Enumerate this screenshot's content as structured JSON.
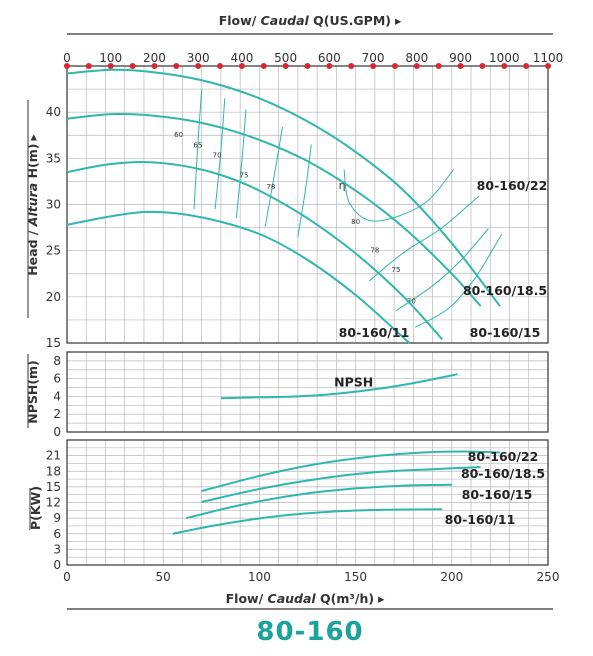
{
  "page_title": "80-160",
  "colors": {
    "curve": "#2fb7ad",
    "grid": "#b9b9b9",
    "frame": "#333333",
    "marker": "#e0232e",
    "title": "#1aa39a",
    "rule": "#555555"
  },
  "chart_data": [
    {
      "type": "line",
      "id": "head",
      "top_axis": {
        "title_plain": "Flow/ ",
        "title_italic": "Caudal",
        "title_rest": " Q(US.GPM)",
        "arrow": "▸",
        "range": [
          0,
          1100
        ],
        "ticks": [
          "0",
          "100",
          "200",
          "300",
          "400",
          "500",
          "600",
          "700",
          "800",
          "900",
          "1000",
          "1100"
        ]
      },
      "y_axis": {
        "title_plain": "Head / ",
        "title_italic": "Altura",
        "title_rest": " H(m)",
        "arrow": "▸",
        "range": [
          15,
          45
        ],
        "ticks": [
          "15",
          "20",
          "25",
          "30",
          "35",
          "40"
        ]
      },
      "x_range": [
        0,
        250
      ],
      "markers_gpm": [
        0,
        50,
        100,
        150,
        200,
        250,
        300,
        350,
        400,
        450,
        500,
        550,
        600,
        650,
        700,
        750,
        800,
        850,
        900,
        950,
        1000,
        1050,
        1100
      ],
      "series": [
        {
          "name": "80-160/22",
          "points": [
            [
              0,
              44.2
            ],
            [
              25,
              44.6
            ],
            [
              50,
              44.2
            ],
            [
              75,
              43.2
            ],
            [
              100,
              41.5
            ],
            [
              125,
              39.0
            ],
            [
              150,
              35.7
            ],
            [
              175,
              31.5
            ],
            [
              200,
              25.8
            ],
            [
              225,
              19.0
            ]
          ]
        },
        {
          "name": "80-160/18.5",
          "points": [
            [
              0,
              39.3
            ],
            [
              25,
              39.8
            ],
            [
              50,
              39.5
            ],
            [
              75,
              38.6
            ],
            [
              100,
              37.0
            ],
            [
              125,
              34.7
            ],
            [
              150,
              31.5
            ],
            [
              175,
              27.5
            ],
            [
              200,
              22.5
            ],
            [
              215,
              19.0
            ]
          ]
        },
        {
          "name": "80-160/15",
          "points": [
            [
              0,
              33.5
            ],
            [
              20,
              34.3
            ],
            [
              40,
              34.6
            ],
            [
              60,
              34.2
            ],
            [
              80,
              33.2
            ],
            [
              100,
              31.5
            ],
            [
              125,
              28.5
            ],
            [
              150,
              24.7
            ],
            [
              175,
              20.0
            ],
            [
              195,
              15.4
            ]
          ]
        },
        {
          "name": "80-160/11",
          "points": [
            [
              0,
              27.8
            ],
            [
              25,
              28.8
            ],
            [
              45,
              29.2
            ],
            [
              70,
              28.6
            ],
            [
              100,
              26.8
            ],
            [
              125,
              24.0
            ],
            [
              150,
              20.2
            ],
            [
              170,
              16.5
            ],
            [
              178,
              15.0
            ]
          ]
        }
      ],
      "efficiency": {
        "symbol": "η",
        "lines": [
          {
            "label": "60",
            "points": [
              [
                70,
                42.5
              ],
              [
                68,
                36.4
              ],
              [
                66,
                29.5
              ]
            ]
          },
          {
            "label": "65",
            "points": [
              [
                82,
                41.5
              ],
              [
                80,
                35.8
              ],
              [
                77,
                29.5
              ]
            ]
          },
          {
            "label": "70",
            "points": [
              [
                93,
                40.3
              ],
              [
                91,
                35.0
              ],
              [
                88,
                28.5
              ]
            ]
          },
          {
            "label": "75",
            "points": [
              [
                112,
                38.4
              ],
              [
                108,
                33.5
              ],
              [
                103,
                27.6
              ]
            ]
          },
          {
            "label": "78",
            "points": [
              [
                127,
                36.5
              ],
              [
                124,
                31.7
              ],
              [
                120,
                26.5
              ]
            ]
          },
          {
            "label": "80",
            "points": [
              [
                144,
                33.8
              ],
              [
                147,
                30.1
              ],
              [
                160,
                28.2
              ],
              [
                185,
                30.0
              ],
              [
                201,
                33.8
              ]
            ]
          },
          {
            "label": "78",
            "points": [
              [
                157,
                21.7
              ],
              [
                175,
                24.8
              ],
              [
                195,
                27.5
              ],
              [
                214,
                30.9
              ]
            ]
          },
          {
            "label": "75",
            "points": [
              [
                171,
                18.5
              ],
              [
                190,
                21.2
              ],
              [
                205,
                24.0
              ],
              [
                219,
                27.4
              ]
            ]
          },
          {
            "label": "70",
            "points": [
              [
                181,
                16.7
              ],
              [
                198,
                18.7
              ],
              [
                212,
                22.0
              ],
              [
                226,
                26.8
              ]
            ]
          }
        ]
      }
    },
    {
      "type": "line",
      "id": "npsh",
      "y_axis": {
        "title": "NPSH(m)",
        "range": [
          0,
          8
        ],
        "ticks": [
          "0",
          "2",
          "4",
          "6",
          "8"
        ]
      },
      "x_range": [
        0,
        250
      ],
      "series": [
        {
          "name": "NPSH",
          "label": "NPSH",
          "points": [
            [
              80,
              3.8
            ],
            [
              100,
              3.9
            ],
            [
              120,
              4.0
            ],
            [
              140,
              4.3
            ],
            [
              160,
              4.8
            ],
            [
              180,
              5.5
            ],
            [
              203,
              6.5
            ]
          ]
        }
      ]
    },
    {
      "type": "line",
      "id": "power",
      "y_axis": {
        "title": "P(KW)",
        "range": [
          0,
          24
        ],
        "ticks": [
          "0",
          "3",
          "6",
          "9",
          "12",
          "15",
          "18",
          "21"
        ]
      },
      "x_axis": {
        "title_plain": "Flow/ ",
        "title_italic": "Caudal",
        "title_rest": " Q(m³/h)",
        "arrow": "▸",
        "range": [
          0,
          250
        ],
        "ticks": [
          "0",
          "50",
          "100",
          "150",
          "200",
          "250"
        ]
      },
      "series": [
        {
          "name": "80-160/22",
          "points": [
            [
              70,
              14.2
            ],
            [
              100,
              17.1
            ],
            [
              130,
              19.4
            ],
            [
              160,
              20.9
            ],
            [
              185,
              21.6
            ],
            [
              205,
              21.8
            ],
            [
              225,
              21.6
            ]
          ]
        },
        {
          "name": "80-160/18.5",
          "points": [
            [
              70,
              12.1
            ],
            [
              100,
              14.6
            ],
            [
              130,
              16.5
            ],
            [
              160,
              17.8
            ],
            [
              190,
              18.4
            ],
            [
              215,
              18.8
            ]
          ]
        },
        {
          "name": "80-160/15",
          "points": [
            [
              62,
              9.0
            ],
            [
              90,
              11.5
            ],
            [
              120,
              13.5
            ],
            [
              150,
              14.7
            ],
            [
              180,
              15.3
            ],
            [
              200,
              15.4
            ]
          ]
        },
        {
          "name": "80-160/11",
          "points": [
            [
              55,
              6.0
            ],
            [
              80,
              7.8
            ],
            [
              110,
              9.4
            ],
            [
              140,
              10.3
            ],
            [
              165,
              10.6
            ],
            [
              195,
              10.7
            ]
          ]
        }
      ]
    }
  ]
}
